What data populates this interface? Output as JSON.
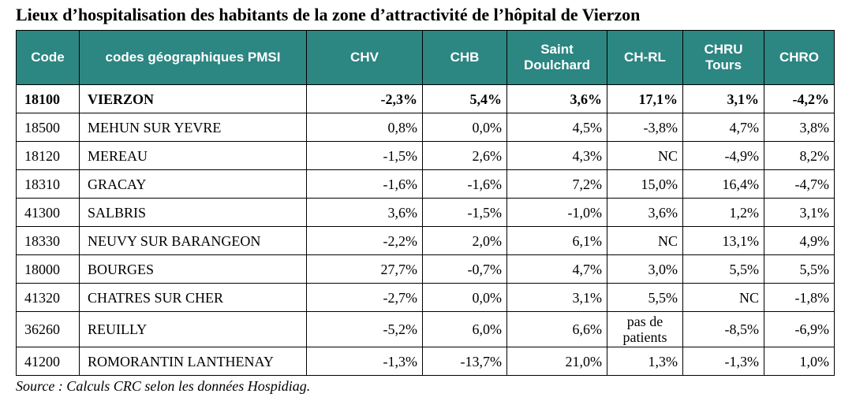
{
  "title": "Lieux d’hospitalisation des habitants de la zone d’attractivité de l’hôpital de Vierzon",
  "headers": [
    "Code",
    "codes géographiques PMSI",
    "CHV",
    "CHB",
    "Saint Doulchard",
    "CH-RL",
    "CHRU Tours",
    "CHRO"
  ],
  "rows": [
    {
      "code": "18100",
      "name": "VIERZON",
      "chv": "-2,3%",
      "chb": "5,4%",
      "saint_doulchard": "3,6%",
      "ch_rl": "17,1%",
      "chru_tours": "3,1%",
      "chro": "-4,2%"
    },
    {
      "code": "18500",
      "name": "MEHUN SUR YEVRE",
      "chv": "0,8%",
      "chb": "0,0%",
      "saint_doulchard": "4,5%",
      "ch_rl": "-3,8%",
      "chru_tours": "4,7%",
      "chro": "3,8%"
    },
    {
      "code": "18120",
      "name": "MEREAU",
      "chv": "-1,5%",
      "chb": "2,6%",
      "saint_doulchard": "4,3%",
      "ch_rl": "NC",
      "chru_tours": "-4,9%",
      "chro": "8,2%"
    },
    {
      "code": "18310",
      "name": "GRACAY",
      "chv": "-1,6%",
      "chb": "-1,6%",
      "saint_doulchard": "7,2%",
      "ch_rl": "15,0%",
      "chru_tours": "16,4%",
      "chro": "-4,7%"
    },
    {
      "code": "41300",
      "name": "SALBRIS",
      "chv": "3,6%",
      "chb": "-1,5%",
      "saint_doulchard": "-1,0%",
      "ch_rl": "3,6%",
      "chru_tours": "1,2%",
      "chro": "3,1%"
    },
    {
      "code": "18330",
      "name": "NEUVY SUR BARANGEON",
      "chv": "-2,2%",
      "chb": "2,0%",
      "saint_doulchard": "6,1%",
      "ch_rl": "NC",
      "chru_tours": "13,1%",
      "chro": "4,9%"
    },
    {
      "code": "18000",
      "name": "BOURGES",
      "chv": "27,7%",
      "chb": "-0,7%",
      "saint_doulchard": "4,7%",
      "ch_rl": "3,0%",
      "chru_tours": "5,5%",
      "chro": "5,5%"
    },
    {
      "code": "41320",
      "name": "CHATRES SUR CHER",
      "chv": "-2,7%",
      "chb": "0,0%",
      "saint_doulchard": "3,1%",
      "ch_rl": "5,5%",
      "chru_tours": "NC",
      "chro": "-1,8%"
    },
    {
      "code": "36260",
      "name": "REUILLY",
      "chv": "-5,2%",
      "chb": "6,0%",
      "saint_doulchard": "6,6%",
      "ch_rl": "pas de patients",
      "chru_tours": "-8,5%",
      "chro": "-6,9%"
    },
    {
      "code": "41200",
      "name": "ROMORANTIN LANTHENAY",
      "chv": "-1,3%",
      "chb": "-13,7%",
      "saint_doulchard": "21,0%",
      "ch_rl": "1,3%",
      "chru_tours": "-1,3%",
      "chro": "1,0%"
    }
  ],
  "source": "Source : Calculs CRC selon les données Hospidiag.",
  "colors": {
    "header_bg": "#2c8682",
    "header_text": "#ffffff"
  }
}
